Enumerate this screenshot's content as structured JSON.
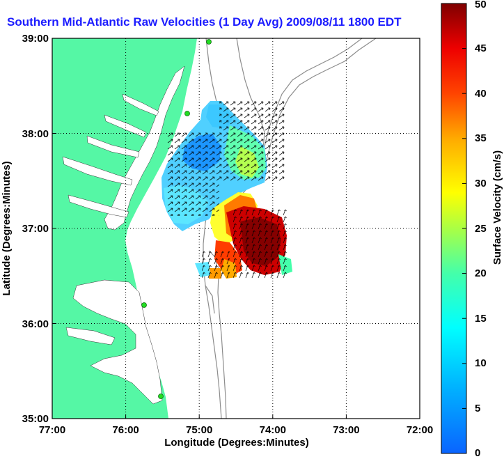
{
  "title": "Southern Mid-Atlantic Raw Velocities (1 Day Avg) 2009/08/11 1800 EDT",
  "map": {
    "x_label": "Longitude (Degrees:Minutes)",
    "y_label": "Latitude (Degrees:Minutes)",
    "lon_ticks": [
      "77:00",
      "76:00",
      "75:00",
      "74:00",
      "73:00",
      "72:00"
    ],
    "lat_ticks": [
      "39:00",
      "38:00",
      "37:00",
      "36:00",
      "35:00"
    ],
    "lon_range": [
      -77,
      -72
    ],
    "lat_range": [
      35,
      39
    ],
    "grid": "dotted",
    "colors": {
      "land": "#55f7a5",
      "water": "#ffffff",
      "bathymetry": "#8c8c8c",
      "vectors": "#000000",
      "station_marker": "#22dd22"
    }
  },
  "colorbar": {
    "label": "Surface Velocity (cm/s)",
    "ticks": [
      "0",
      "5",
      "10",
      "15",
      "20",
      "25",
      "30",
      "35",
      "40",
      "45",
      "50"
    ],
    "range": [
      0,
      50
    ],
    "colormap": "jet"
  }
}
